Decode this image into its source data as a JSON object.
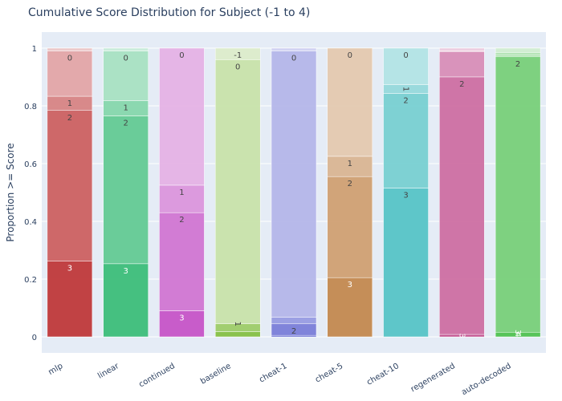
{
  "chart_data": {
    "type": "bar",
    "stacked": true,
    "title": "Cumulative Score Distribution for Subject (-1 to 4)",
    "xlabel": "",
    "ylabel": "Proportion >= Score",
    "ylim": [
      0,
      1
    ],
    "yticks": [
      0,
      0.2,
      0.4,
      0.6,
      0.8,
      1
    ],
    "ytick_labels": [
      "0",
      "0.2",
      "0.4",
      "0.6",
      "0.8",
      "1"
    ],
    "score_levels": [
      "-1",
      "0",
      "1",
      "2",
      "3",
      "4"
    ],
    "categories": [
      "mlp",
      "linear",
      "continued",
      "baseline",
      "cheat-1",
      "cheat-5",
      "cheat-10",
      "regenerated",
      "auto-decoded"
    ],
    "bars": [
      {
        "name": "mlp",
        "base_color": "#c0393b",
        "cumulative": [
          1.0,
          0.99,
          0.833,
          0.784,
          0.262,
          0.0
        ],
        "labels_shown": [
          "",
          "0",
          "1",
          "2",
          "3",
          ""
        ]
      },
      {
        "name": "linear",
        "base_color": "#3dbe7a",
        "cumulative": [
          1.0,
          0.99,
          0.818,
          0.765,
          0.253,
          0.0
        ],
        "labels_shown": [
          "",
          "0",
          "1",
          "2",
          "3",
          ""
        ]
      },
      {
        "name": "continued",
        "base_color": "#c755c8",
        "cumulative": [
          1.0,
          1.0,
          0.525,
          0.43,
          0.09,
          0.0
        ],
        "labels_shown": [
          "",
          "0",
          "1",
          "2",
          "3",
          ""
        ]
      },
      {
        "name": "baseline",
        "base_color": "#86c044",
        "cumulative": [
          1.0,
          0.96,
          0.045,
          0.045,
          0.018,
          0.0
        ],
        "labels_shown": [
          "-1",
          "0",
          "1",
          "",
          "",
          ""
        ]
      },
      {
        "name": "cheat-1",
        "base_color": "#5a5fd0",
        "cumulative": [
          1.0,
          0.99,
          0.068,
          0.045,
          0.005,
          0.0
        ],
        "labels_shown": [
          "",
          "0",
          "",
          "2",
          "",
          ""
        ]
      },
      {
        "name": "cheat-5",
        "base_color": "#c48a50",
        "cumulative": [
          1.0,
          1.0,
          0.625,
          0.555,
          0.205,
          0.0
        ],
        "labels_shown": [
          "",
          "0",
          "1",
          "2",
          "3",
          ""
        ]
      },
      {
        "name": "cheat-10",
        "base_color": "#57c4c7",
        "cumulative": [
          1.0,
          1.0,
          0.873,
          0.843,
          0.515,
          0.0
        ],
        "labels_shown": [
          "",
          "0",
          "1",
          "2",
          "3",
          ""
        ]
      },
      {
        "name": "regenerated",
        "base_color": "#c24b8c",
        "cumulative": [
          1.0,
          0.99,
          0.988,
          0.9,
          0.008,
          0.0
        ],
        "labels_shown": [
          "",
          "",
          "",
          "2",
          "3",
          ""
        ]
      },
      {
        "name": "auto-decoded",
        "base_color": "#57c459",
        "cumulative": [
          1.0,
          0.985,
          0.975,
          0.97,
          0.016,
          0.016
        ],
        "labels_shown": [
          "",
          "",
          "",
          "2",
          "3",
          "4"
        ]
      }
    ]
  }
}
